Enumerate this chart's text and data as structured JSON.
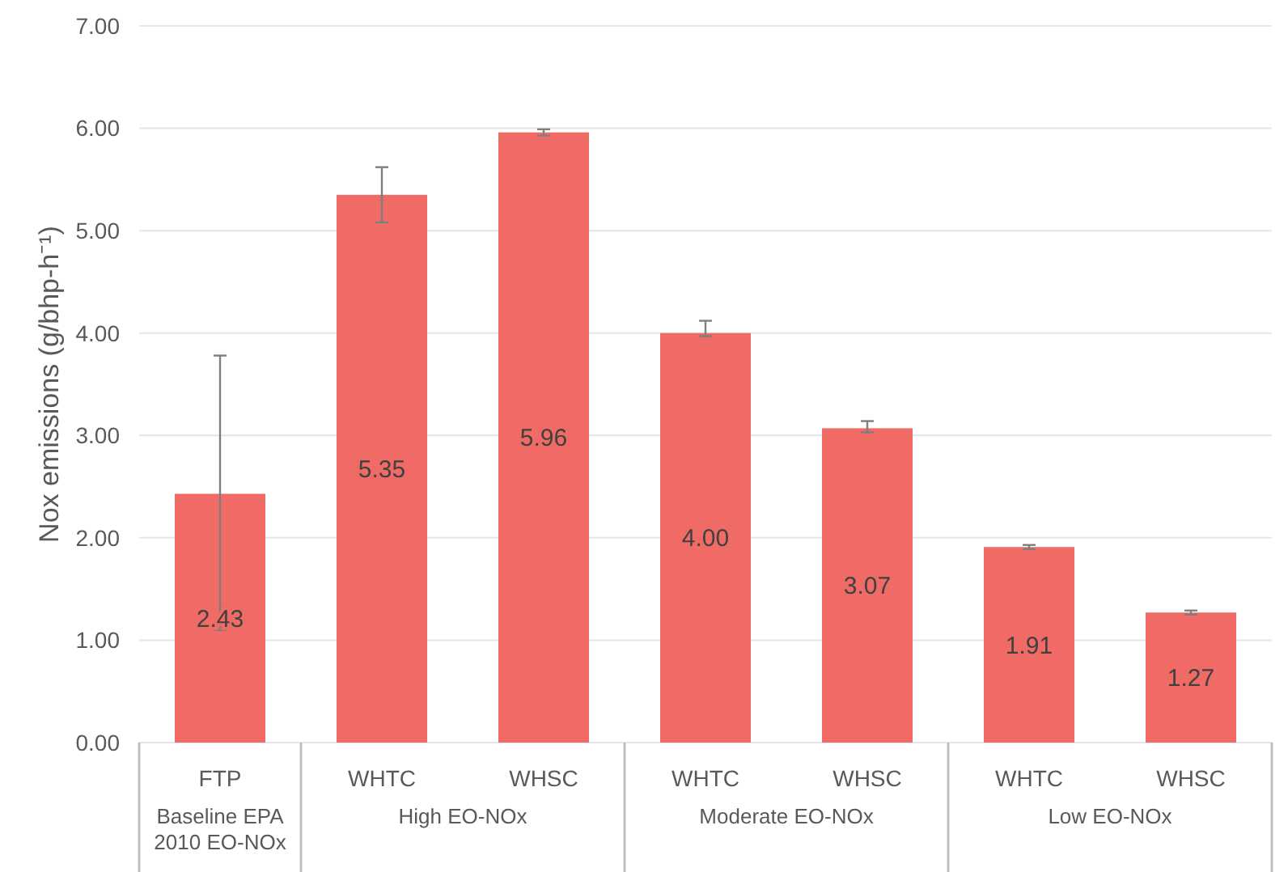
{
  "chart_data": {
    "type": "bar",
    "ylabel": "Nox emissions (g/bhp-h⁻¹)",
    "categories": [
      "FTP",
      "WHTC",
      "WHSC",
      "WHTC",
      "WHSC",
      "WHTC",
      "WHSC"
    ],
    "values": [
      2.43,
      5.35,
      5.96,
      4.0,
      3.07,
      1.91,
      1.27
    ],
    "color": "#f06b65",
    "errors": [
      [
        1.1,
        3.78
      ],
      [
        5.08,
        5.62
      ],
      [
        5.93,
        5.99
      ],
      [
        3.97,
        4.12
      ],
      [
        3.03,
        3.14
      ],
      [
        1.89,
        1.93
      ],
      [
        1.25,
        1.29
      ]
    ],
    "value_labels": [
      "2.43",
      "5.35",
      "5.96",
      "4.00",
      "3.07",
      "1.91",
      "1.27"
    ],
    "ylim": [
      0,
      7
    ],
    "yticks": [
      {
        "value": 0,
        "label": "0.00"
      },
      {
        "value": 1,
        "label": "1.00"
      },
      {
        "value": 2,
        "label": "2.00"
      },
      {
        "value": 3,
        "label": "3.00"
      },
      {
        "value": 4,
        "label": "4.00"
      },
      {
        "value": 5,
        "label": "5.00"
      },
      {
        "value": 6,
        "label": "6.00"
      },
      {
        "value": 7,
        "label": "7.00"
      }
    ],
    "grid": "y",
    "annotations": [
      "Baseline EPA 2010 EO-NOx",
      "High EO-NOx",
      "Moderate EO-NOx",
      "Low EO-NOx"
    ]
  }
}
